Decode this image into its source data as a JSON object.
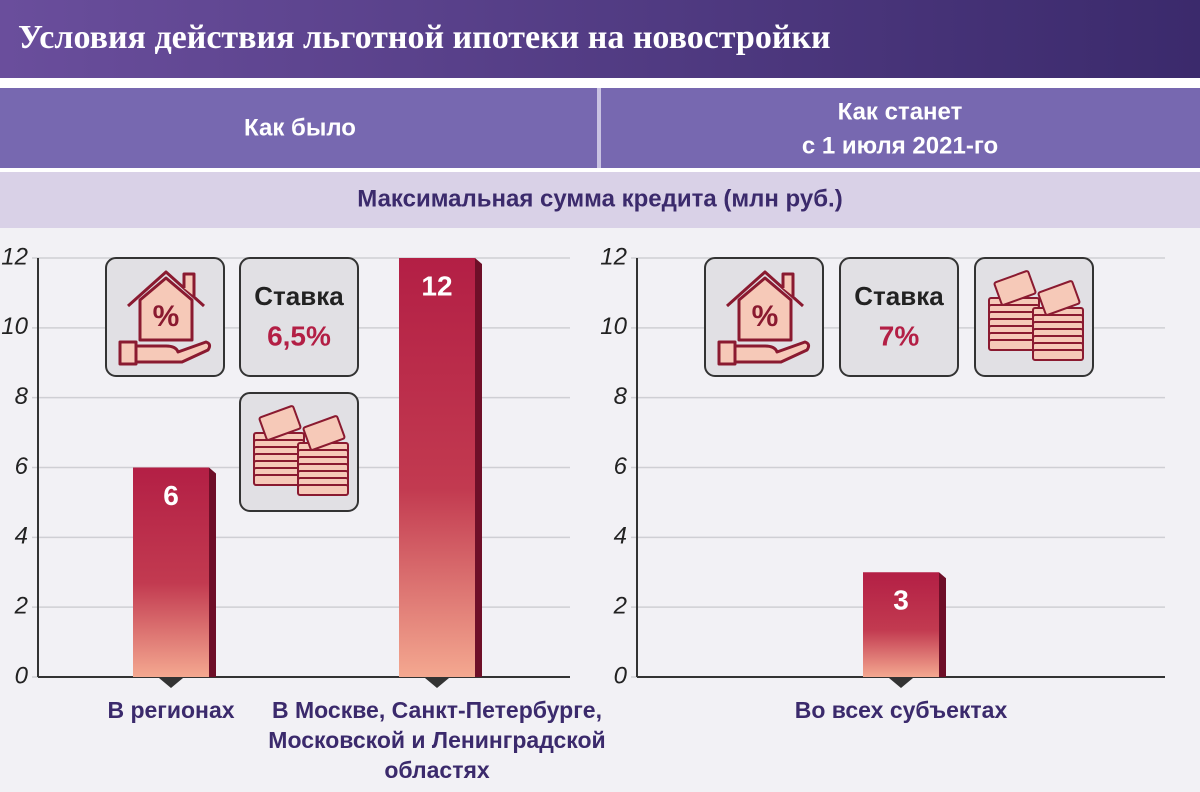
{
  "header": {
    "title": "Условия действия льготной ипотеки на новостройки",
    "before": "Как было",
    "after": [
      "Как станет",
      "с 1 июля 2021-го"
    ],
    "subtitle": "Максимальная сумма кредита (млн руб.)"
  },
  "chart_data": [
    {
      "type": "bar",
      "categories": [
        "В регионах",
        "В Москве, Санкт-Петербурге, Московской и Ленинградской областях"
      ],
      "values": [
        6,
        12
      ],
      "ylim": [
        0,
        12
      ],
      "yticks": [
        0,
        2,
        4,
        6,
        8,
        10,
        12
      ],
      "grid": true,
      "color": "#b31f45",
      "rate_label": "Ставка",
      "rate": "6,5%"
    },
    {
      "type": "bar",
      "categories": [
        "Во всех субъектах"
      ],
      "values": [
        3
      ],
      "ylim": [
        0,
        12
      ],
      "yticks": [
        0,
        2,
        4,
        6,
        8,
        10,
        12
      ],
      "grid": true,
      "color": "#b31f45",
      "rate_label": "Ставка",
      "rate": "7%"
    }
  ]
}
